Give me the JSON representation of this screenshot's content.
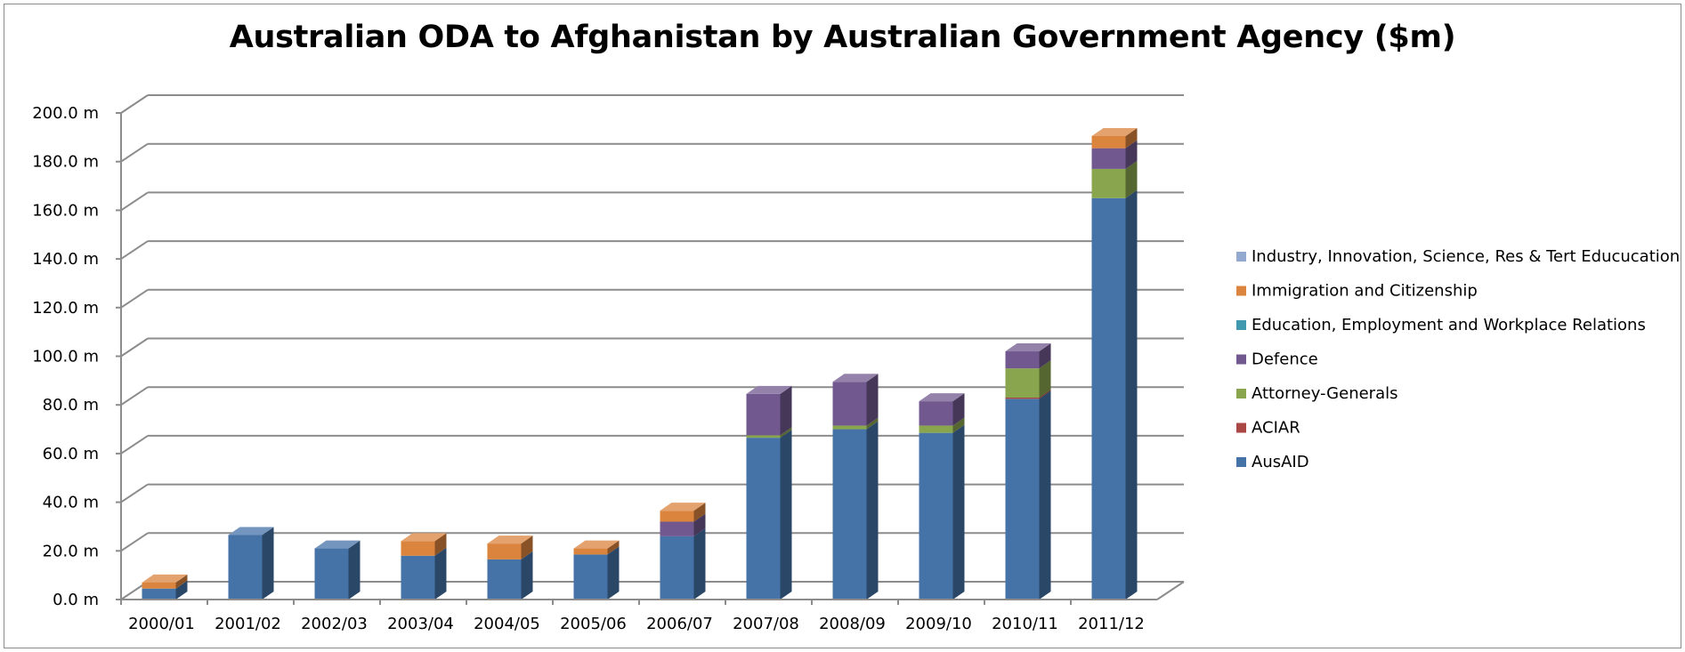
{
  "chart_data": {
    "type": "bar",
    "stacked": true,
    "three_d": true,
    "title": "Australian ODA to Afghanistan by Australian Government Agency ($m)",
    "xlabel": "",
    "ylabel": "",
    "ylim": [
      0,
      200
    ],
    "y_ticks": [
      "0.0 m",
      "20.0 m",
      "40.0 m",
      "60.0 m",
      "80.0 m",
      "100.0 m",
      "120.0 m",
      "140.0 m",
      "160.0 m",
      "180.0 m",
      "200.0 m"
    ],
    "y_tick_values": [
      0,
      20,
      40,
      60,
      80,
      100,
      120,
      140,
      160,
      180,
      200
    ],
    "grid": true,
    "legend_position": "right",
    "categories": [
      "2000/01",
      "2001/02",
      "2002/03",
      "2003/04",
      "2004/05",
      "2005/06",
      "2006/07",
      "2007/08",
      "2008/09",
      "2009/10",
      "2010/11",
      "2011/12"
    ],
    "series": [
      {
        "name": "AusAID",
        "color": "#4572A7",
        "values": [
          4.5,
          26.5,
          21,
          18,
          16.5,
          18.5,
          26,
          66.5,
          70,
          68.5,
          82.5,
          165
        ]
      },
      {
        "name": "ACIAR",
        "color": "#AA4643",
        "values": [
          0,
          0,
          0,
          0,
          0,
          0,
          0,
          0,
          0,
          0,
          0.5,
          0
        ]
      },
      {
        "name": "Attorney-Generals",
        "color": "#89A54E",
        "values": [
          0,
          0,
          0,
          0,
          0,
          0,
          0,
          1,
          1.5,
          3,
          12,
          12
        ]
      },
      {
        "name": "Defence",
        "color": "#71588F",
        "values": [
          0,
          0,
          0,
          0,
          0,
          0,
          6,
          17,
          18,
          10,
          7,
          8.5
        ]
      },
      {
        "name": "Education, Employment and Workplace Relations",
        "color": "#4198AF",
        "values": [
          0,
          0,
          0,
          0,
          0,
          0,
          0,
          0,
          0,
          0,
          0,
          0
        ]
      },
      {
        "name": "Immigration and Citizenship",
        "color": "#DB843D",
        "values": [
          2.5,
          0,
          0,
          6,
          6.5,
          2.5,
          4.5,
          0,
          0,
          0,
          0,
          5
        ]
      },
      {
        "name": "Industry, Innovation, Science, Res & Tert Educucation",
        "color": "#93A9CF",
        "values": [
          0,
          0,
          0,
          0,
          0,
          0,
          0,
          0,
          0,
          0,
          0,
          0
        ]
      }
    ]
  }
}
